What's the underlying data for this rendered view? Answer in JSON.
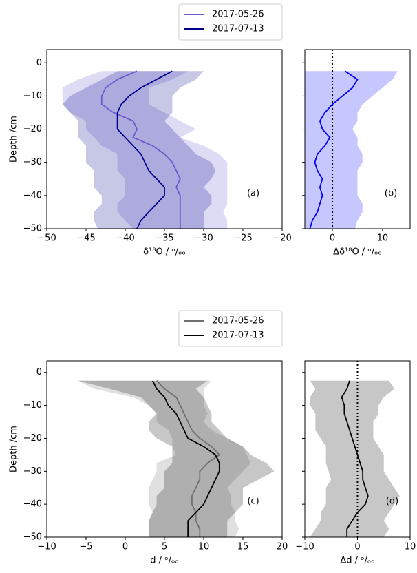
{
  "chart_data": [
    {
      "type": "line",
      "xlabel": "δ¹⁸O / ᵒ/ₒₒ",
      "ylabel": "Depth /cm",
      "annotation": "(a)",
      "legend": true,
      "xlim": [
        -50,
        -20
      ],
      "ylim": [
        -50,
        4
      ],
      "xticks": [
        {
          "value": -50,
          "label": "−50"
        },
        {
          "value": -45,
          "label": "−45"
        },
        {
          "value": -40,
          "label": "−40"
        },
        {
          "value": -35,
          "label": "−35"
        },
        {
          "value": -30,
          "label": "−30"
        },
        {
          "value": -25,
          "label": "−25"
        },
        {
          "value": -20,
          "label": "−20"
        }
      ],
      "yticks": [
        0,
        {
          "value": -10,
          "label": "−10"
        },
        {
          "value": -20,
          "label": "−20"
        },
        {
          "value": -30,
          "label": "−30"
        },
        {
          "value": -40,
          "label": "−40"
        },
        {
          "value": -50,
          "label": "−50"
        }
      ],
      "ytick_labels": true,
      "y": [
        -2.5,
        -5,
        -7.5,
        -10,
        -12.5,
        -15,
        -17.5,
        -20,
        -22.5,
        -25,
        -27.5,
        -30,
        -32.5,
        -35,
        -37.5,
        -40,
        -42.5,
        -45,
        -47.5,
        -50
      ],
      "series": [
        {
          "name": "2017-05-26",
          "color": "#6a5acd",
          "values": [
            -38.5,
            -41,
            -42.5,
            -43,
            -43,
            -41.5,
            -39,
            -38.5,
            -39,
            -36.5,
            -35,
            -34,
            -33.5,
            -33,
            -33.5,
            -33,
            -33,
            -33,
            -33,
            -33
          ],
          "lower": [
            -43,
            -46,
            -48,
            -48,
            -48,
            -47,
            -45,
            -45,
            -44,
            -43,
            -41,
            -41,
            -41,
            -40,
            -40,
            -40,
            -41,
            -41,
            -40,
            -39
          ],
          "upper": [
            -32,
            -34,
            -37,
            -37,
            -37,
            -35,
            -33,
            -31,
            -33,
            -30,
            -28,
            -27,
            -27,
            -27,
            -27,
            -27,
            -27,
            -27.5,
            -27,
            -27
          ]
        },
        {
          "name": "2017-07-13",
          "color": "#00008b",
          "values": [
            -34,
            -36,
            -38,
            -39.5,
            -40.5,
            -41,
            -41,
            -41,
            -40,
            -39,
            -38,
            -37.5,
            -37,
            -36,
            -35,
            -35,
            -36,
            -37,
            -38,
            -38.5
          ],
          "lower": [
            -41,
            -43,
            -45,
            -47,
            -48,
            -47,
            -46,
            -46,
            -46,
            -45,
            -45,
            -45,
            -44,
            -44,
            -44,
            -43,
            -43,
            -44,
            -44,
            -43.5
          ],
          "upper": [
            -30,
            -31,
            -33,
            -34,
            -34,
            -34,
            -35,
            -34,
            -33,
            -32,
            -31,
            -29,
            -28.5,
            -29,
            -30,
            -29,
            -29,
            -30,
            -30,
            -30
          ]
        }
      ]
    },
    {
      "type": "line",
      "xlabel": "Δδ¹⁸O / ᵒ/ₒₒ",
      "annotation": "(b)",
      "legend": false,
      "xlim": [
        -5.5,
        15.5
      ],
      "ylim": [
        -50,
        4
      ],
      "reference_line": 0,
      "xticks": [
        0,
        10
      ],
      "yticks": [
        0,
        -10,
        -20,
        -30,
        -40,
        -50
      ],
      "ytick_labels": false,
      "y": [
        -2.5,
        -5,
        -7.5,
        -10,
        -12.5,
        -15,
        -17.5,
        -20,
        -22.5,
        -25,
        -27.5,
        -30,
        -32.5,
        -35,
        -37.5,
        -40,
        -42.5,
        -45,
        -47.5,
        -50
      ],
      "series": [
        {
          "color": "#0000ff",
          "values": [
            2.5,
            5,
            4,
            2,
            0,
            -1.5,
            -2.5,
            -2,
            -0.5,
            -1.5,
            -3,
            -3.5,
            -3,
            -2,
            -2.5,
            -2,
            -2.5,
            -3,
            -4,
            -4.5
          ],
          "lower": [
            -5.5,
            -5.5,
            -5.5,
            -5.5,
            -5.5,
            -5.5,
            -5.5,
            -5.5,
            -5.5,
            -5.5,
            -5.5,
            -5.5,
            -5.5,
            -5.5,
            -5.5,
            -5.5,
            -5.5,
            -5.5,
            -5.5,
            -5.5
          ],
          "upper": [
            13,
            12,
            10,
            8,
            6,
            5,
            5,
            4,
            5,
            5,
            6,
            6,
            5,
            5,
            5,
            5,
            6,
            6,
            5,
            4.5
          ]
        }
      ]
    },
    {
      "type": "line",
      "xlabel": "d  / ᵒ/ₒₒ",
      "ylabel": "Depth /cm",
      "annotation": "(c)",
      "legend": true,
      "xlim": [
        -10,
        20
      ],
      "ylim": [
        -50,
        3.5
      ],
      "xticks": [
        {
          "value": -10,
          "label": "−10"
        },
        {
          "value": -5,
          "label": "−5"
        },
        0,
        5,
        10,
        15,
        20
      ],
      "yticks": [
        0,
        {
          "value": -10,
          "label": "−10"
        },
        {
          "value": -20,
          "label": "−20"
        },
        {
          "value": -30,
          "label": "−30"
        },
        {
          "value": -40,
          "label": "−40"
        },
        {
          "value": -50,
          "label": "−50"
        }
      ],
      "ytick_labels": true,
      "y": [
        -2.5,
        -5,
        -7.5,
        -10,
        -12.5,
        -15,
        -17.5,
        -20,
        -22.5,
        -25,
        -27.5,
        -30,
        -32.5,
        -35,
        -37.5,
        -40,
        -42.5,
        -45,
        -47.5,
        -50
      ],
      "series": [
        {
          "name": "2017-05-26",
          "color": "#707070",
          "values": [
            4,
            5,
            6.5,
            7,
            7.5,
            8,
            8.5,
            9.5,
            11,
            12,
            10.5,
            9.5,
            9.5,
            9,
            8.5,
            8.5,
            9,
            9,
            9.5,
            9.5
          ],
          "lower": [
            -6,
            -4,
            1,
            3,
            4,
            4,
            5.5,
            6,
            6,
            6.5,
            4,
            4,
            3.5,
            3,
            3,
            3,
            3.5,
            3,
            3,
            3
          ],
          "upper": [
            11,
            10,
            10,
            10,
            10.5,
            10,
            11,
            13,
            15,
            15.5,
            16,
            15,
            14,
            13,
            13.5,
            13.5,
            14,
            14,
            14.5,
            14
          ]
        },
        {
          "name": "2017-07-13",
          "color": "#000000",
          "values": [
            3.5,
            4,
            5,
            5.5,
            6.5,
            7,
            7.5,
            8,
            10,
            11.5,
            12,
            12,
            11.5,
            11,
            10.5,
            10,
            9,
            8,
            8,
            8
          ],
          "lower": [
            -6,
            -2,
            2,
            3,
            4,
            3,
            3,
            4,
            6,
            6,
            6,
            5,
            5,
            5,
            4,
            4,
            3.5,
            3,
            3,
            3
          ],
          "upper": [
            10.5,
            9,
            10,
            10.5,
            11,
            11,
            12,
            13,
            15,
            16,
            18,
            19,
            17,
            15,
            15,
            15,
            14,
            13,
            13,
            13
          ]
        }
      ]
    },
    {
      "type": "line",
      "xlabel": "Δd / ᵒ/ₒₒ",
      "annotation": "(d)",
      "legend": false,
      "xlim": [
        -10,
        10
      ],
      "ylim": [
        -50,
        3.5
      ],
      "reference_line": 0,
      "xticks": [
        {
          "value": -10,
          "label": "−10"
        },
        0,
        10
      ],
      "yticks": [
        0,
        -10,
        -20,
        -30,
        -40,
        -50
      ],
      "ytick_labels": false,
      "y": [
        -2.5,
        -5,
        -7.5,
        -10,
        -12.5,
        -15,
        -17.5,
        -20,
        -22.5,
        -25,
        -27.5,
        -30,
        -32.5,
        -35,
        -37.5,
        -40,
        -42.5,
        -45,
        -47.5,
        -50
      ],
      "series": [
        {
          "color": "#000000",
          "values": [
            -1.5,
            -2,
            -3,
            -2.5,
            -2.5,
            -2,
            -1.5,
            -1,
            -0.5,
            0,
            0.5,
            1,
            1,
            1.5,
            2,
            1.5,
            0,
            -1,
            -2,
            -2
          ],
          "lower": [
            -9,
            -8,
            -9,
            -9,
            -8,
            -8,
            -8,
            -7,
            -6,
            -6,
            -6,
            -5.5,
            -5,
            -6,
            -6,
            -6,
            -7,
            -7,
            -8,
            -9
          ],
          "upper": [
            6,
            7,
            5,
            4,
            4,
            3,
            3,
            3,
            4,
            5,
            5,
            5,
            6,
            7,
            8,
            7,
            6,
            5,
            6,
            5
          ]
        }
      ]
    }
  ]
}
